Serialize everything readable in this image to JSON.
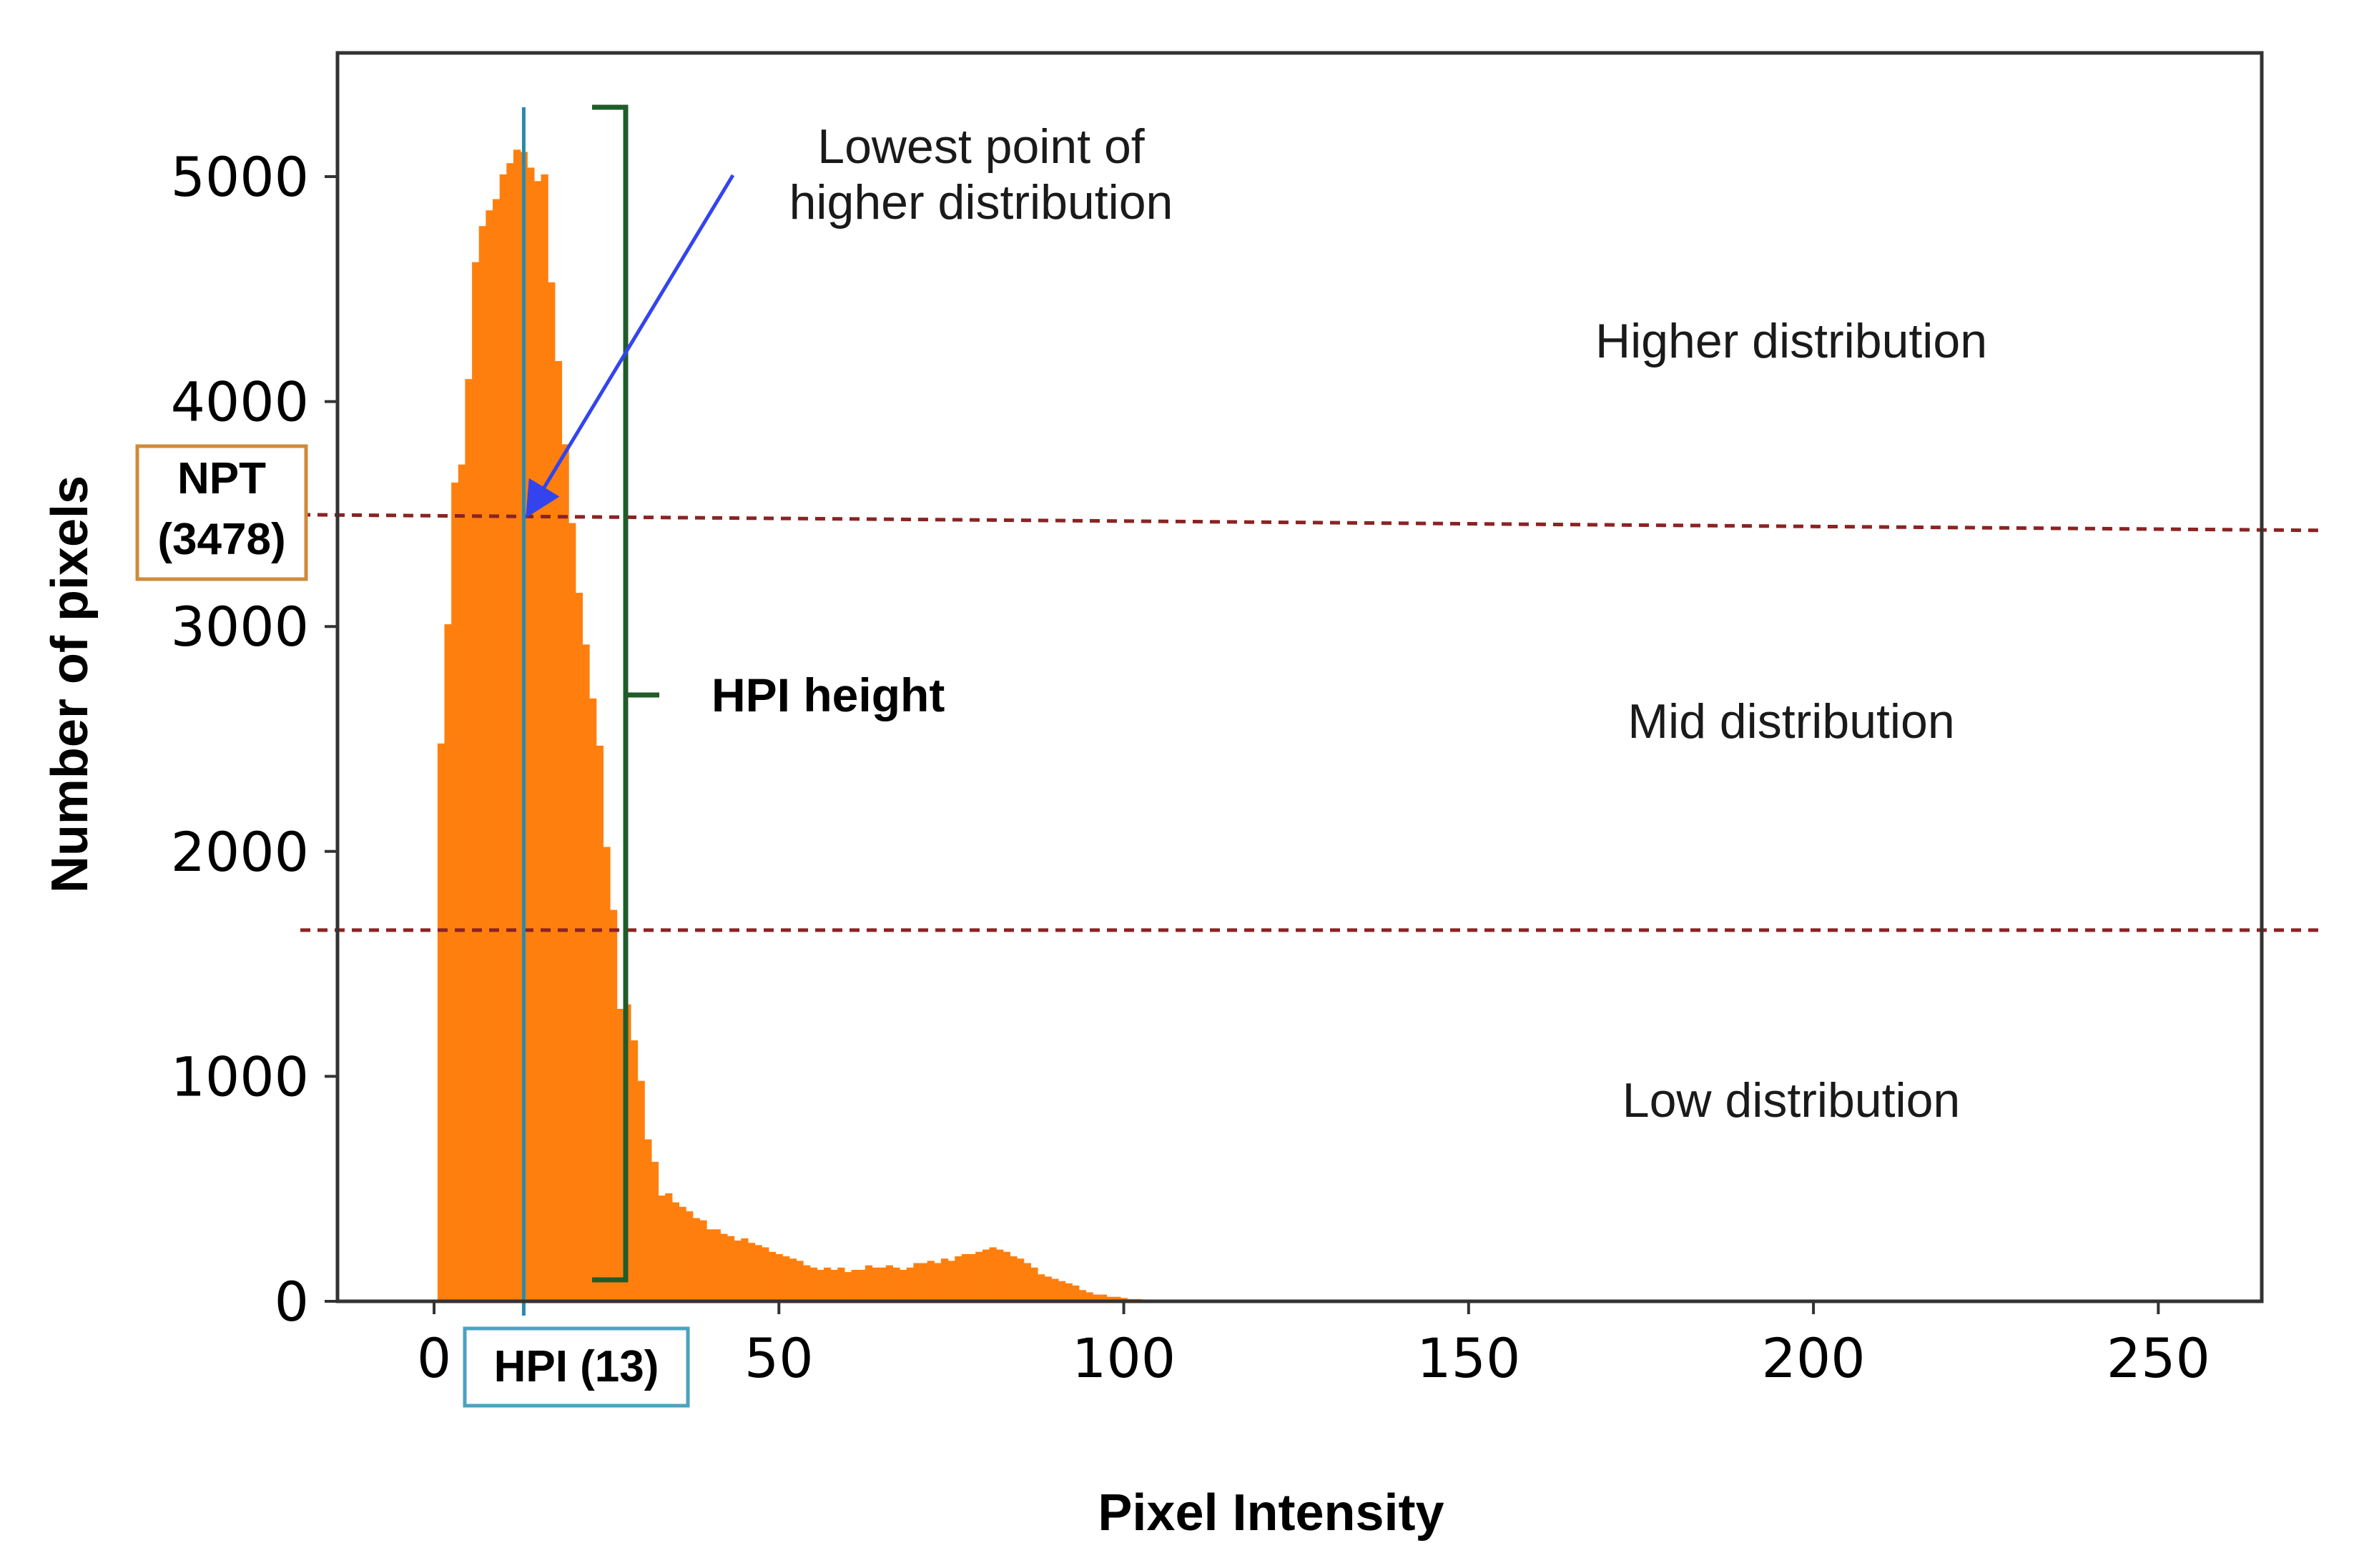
{
  "colors": {
    "bars": "#ff7f0e",
    "hpi_line": "#2b8aa8",
    "hpi_box": "#4aa3c0",
    "npt_box": "#d08a3a",
    "threshold": "#8b2323",
    "bracket": "#1f5c2a",
    "arrow": "#3344ee"
  },
  "chart_data": {
    "type": "bar",
    "title": "",
    "xlabel": "Pixel Intensity",
    "ylabel": "Number of pixels",
    "xlim": [
      -14,
      265
    ],
    "ylim": [
      0,
      5550
    ],
    "xticks": [
      0,
      50,
      100,
      150,
      200,
      250
    ],
    "yticks": [
      0,
      1000,
      2000,
      3000,
      4000,
      5000
    ],
    "bin_width": 1,
    "x": [
      1,
      2,
      3,
      4,
      5,
      6,
      7,
      8,
      9,
      10,
      11,
      12,
      13,
      14,
      15,
      16,
      17,
      18,
      19,
      20,
      21,
      22,
      23,
      24,
      25,
      26,
      27,
      28,
      29,
      30,
      31,
      32,
      33,
      34,
      35,
      36,
      37,
      38,
      39,
      40,
      41,
      42,
      43,
      44,
      45,
      46,
      47,
      48,
      49,
      50,
      51,
      52,
      53,
      54,
      55,
      56,
      57,
      58,
      59,
      60,
      61,
      62,
      63,
      64,
      65,
      66,
      67,
      68,
      69,
      70,
      71,
      72,
      73,
      74,
      75,
      76,
      77,
      78,
      79,
      80,
      81,
      82,
      83,
      84,
      85,
      86,
      87,
      88,
      89,
      90,
      91,
      92,
      93,
      94,
      95,
      96,
      97,
      98,
      99,
      100,
      101,
      102,
      103,
      104,
      105,
      106,
      107,
      108,
      109,
      110,
      111,
      112
    ],
    "values": [
      2480,
      3010,
      3640,
      3720,
      4100,
      4620,
      4780,
      4850,
      4900,
      5010,
      5060,
      5120,
      5110,
      5040,
      4980,
      5010,
      4530,
      4180,
      3810,
      3460,
      3150,
      2920,
      2680,
      2470,
      2020,
      1740,
      1300,
      1320,
      1160,
      980,
      720,
      620,
      470,
      480,
      440,
      420,
      400,
      370,
      360,
      320,
      320,
      300,
      290,
      270,
      280,
      260,
      250,
      240,
      220,
      210,
      200,
      190,
      180,
      160,
      150,
      140,
      150,
      140,
      150,
      130,
      140,
      140,
      160,
      150,
      150,
      160,
      150,
      140,
      150,
      170,
      170,
      180,
      170,
      190,
      180,
      200,
      210,
      210,
      220,
      230,
      240,
      230,
      220,
      200,
      190,
      170,
      150,
      120,
      110,
      100,
      90,
      80,
      70,
      50,
      40,
      30,
      30,
      20,
      20,
      15,
      10,
      10,
      8,
      6,
      5,
      4,
      3,
      2,
      2,
      1,
      1,
      1
    ],
    "annotations": {
      "npt_value": 3478,
      "npt_label": "NPT",
      "npt_value_label": "(3478)",
      "hpi_value": 13,
      "hpi_label": "HPI (13)",
      "lower_threshold": 1650,
      "hpi_height_label": "HPI height",
      "callout_line1": "Lowest point of",
      "callout_line2": "higher distribution",
      "regions": {
        "higher": "Higher distribution",
        "mid": "Mid distribution",
        "low": "Low distribution"
      }
    }
  }
}
